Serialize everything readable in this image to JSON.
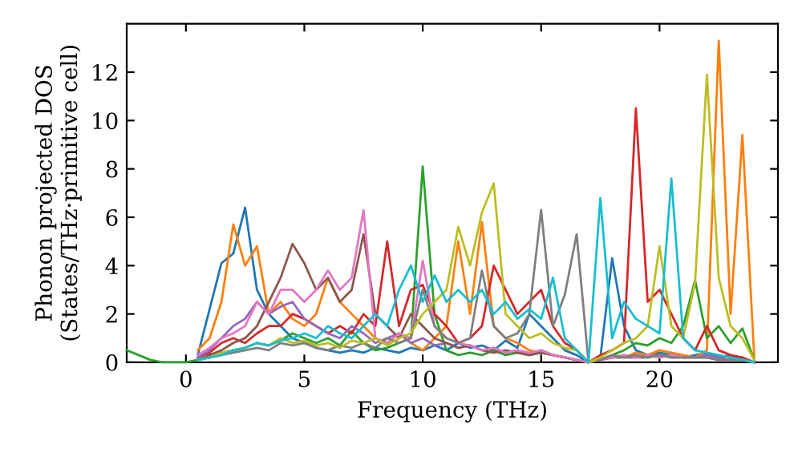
{
  "chart_data": {
    "type": "line",
    "xlabel": "Frequency (THz)",
    "ylabel": "Phonon projected DOS\n(States/THz·primitive cell)",
    "xlim": [
      -2.5,
      25
    ],
    "ylim": [
      0,
      14
    ],
    "xticks": [
      0,
      5,
      10,
      15,
      20
    ],
    "yticks": [
      0,
      2,
      4,
      6,
      8,
      10,
      12
    ],
    "grid": false,
    "marker": "none",
    "line_style": "solid",
    "x": [
      -2.5,
      -2,
      -1.5,
      -1,
      -0.5,
      0,
      0.5,
      1,
      1.5,
      2,
      2.5,
      3,
      3.5,
      4,
      4.5,
      5,
      5.5,
      6,
      6.5,
      7,
      7.5,
      8,
      8.5,
      9,
      9.5,
      10,
      10.5,
      11,
      11.5,
      12,
      12.5,
      13,
      13.5,
      14,
      14.5,
      15,
      15.5,
      16,
      16.5,
      17,
      17.5,
      18,
      18.5,
      19,
      19.5,
      20,
      20.5,
      21,
      21.5,
      22,
      22.5,
      23,
      23.5,
      24
    ],
    "series": [
      {
        "color": "#1f77b4",
        "values": [
          null,
          null,
          null,
          null,
          null,
          null,
          0.3,
          2.2,
          4.1,
          4.5,
          6.4,
          3,
          2,
          1.5,
          1,
          0.8,
          0.6,
          0.5,
          0.4,
          0.5,
          0.4,
          0.6,
          0.5,
          0.4,
          0.6,
          0.5,
          0.7,
          0.5,
          0.8,
          0.6,
          0.7,
          0.5,
          0.9,
          0.6,
          2,
          1.5,
          1,
          0.5,
          0.3,
          0,
          0.2,
          4.3,
          1.5,
          0.5,
          0.3,
          0.4,
          0.3,
          0.2,
          0.3,
          0.4,
          0.2,
          0.3,
          0.1,
          0
        ]
      },
      {
        "color": "#ff7f0e",
        "values": [
          null,
          null,
          null,
          null,
          null,
          null,
          0.5,
          1,
          2.5,
          5.7,
          4,
          4.8,
          2,
          2.5,
          1.8,
          1.5,
          2,
          3.5,
          2.5,
          2,
          1.5,
          1,
          0.8,
          1.2,
          0.8,
          0.5,
          1,
          1.5,
          5,
          2,
          5.8,
          1.5,
          1,
          0.8,
          0.5,
          0.4,
          0.3,
          0.2,
          0.1,
          0,
          0.1,
          0.3,
          0.2,
          0.4,
          0.3,
          0.5,
          0.4,
          0.3,
          0.2,
          0.5,
          13.3,
          2,
          9.4,
          0.2
        ]
      },
      {
        "color": "#2ca02c",
        "values": [
          0.5,
          0.3,
          0.1,
          0,
          0,
          0,
          0.1,
          0.2,
          0.4,
          0.5,
          0.6,
          0.8,
          0.7,
          0.9,
          1.2,
          1,
          0.8,
          1,
          0.7,
          1.3,
          0.8,
          0.5,
          0.6,
          0.8,
          1,
          8.1,
          2,
          0.5,
          0.3,
          0.4,
          0.3,
          0.5,
          0.3,
          0.4,
          0.3,
          0.5,
          0.3,
          0.2,
          0.1,
          0,
          0.1,
          0.3,
          0.5,
          0.8,
          0.7,
          1,
          0.8,
          1.5,
          3.4,
          1,
          1.5,
          0.8,
          1.4,
          0.1
        ]
      },
      {
        "color": "#d62728",
        "values": [
          null,
          null,
          null,
          null,
          null,
          null,
          0.2,
          0.4,
          0.8,
          1,
          0.8,
          1.2,
          1.5,
          1.5,
          2,
          1.8,
          1.5,
          1.2,
          1.5,
          1.2,
          2,
          1.5,
          5,
          1.5,
          3,
          3.2,
          2,
          1.5,
          0.8,
          1,
          1.5,
          4,
          3,
          2,
          2.5,
          3,
          1.5,
          0.8,
          0.5,
          0,
          0.3,
          0.5,
          0.8,
          10.5,
          2.5,
          3,
          2,
          1,
          0.5,
          1.5,
          0.5,
          0.3,
          0.2,
          0
        ]
      },
      {
        "color": "#9467bd",
        "values": [
          null,
          null,
          null,
          null,
          null,
          null,
          0.2,
          0.5,
          1,
          1.5,
          1.8,
          2.5,
          2,
          2.3,
          2.5,
          1.8,
          1.5,
          1.2,
          1,
          1.5,
          1.2,
          0.8,
          1,
          1.2,
          0.8,
          1,
          0.7,
          0.8,
          0.6,
          0.7,
          0.5,
          0.6,
          0.4,
          0.5,
          0.3,
          0.4,
          0.3,
          0.2,
          0.1,
          0,
          0.1,
          0.2,
          0.3,
          0.2,
          0.3,
          0.2,
          0.3,
          0.2,
          0.2,
          0.3,
          0.2,
          0.1,
          0.1,
          0
        ]
      },
      {
        "color": "#8c564b",
        "values": [
          null,
          null,
          null,
          null,
          null,
          null,
          0.1,
          0.3,
          0.5,
          0.8,
          1,
          1.5,
          2.5,
          3.5,
          4.9,
          4.1,
          3,
          3.5,
          2.5,
          3,
          5.3,
          2,
          1.5,
          1,
          2,
          1.5,
          1,
          0.8,
          0.6,
          0.7,
          0.5,
          0.4,
          0.5,
          0.4,
          0.3,
          0.4,
          0.3,
          0.2,
          0.1,
          0,
          0.1,
          0.2,
          0.2,
          0.2,
          0.2,
          0.3,
          0.2,
          0.2,
          0.2,
          0.2,
          0.1,
          0.1,
          0.1,
          0
        ]
      },
      {
        "color": "#e377c2",
        "values": [
          null,
          null,
          null,
          null,
          null,
          null,
          0.3,
          0.6,
          1,
          1.2,
          1.5,
          2.5,
          2,
          3,
          3,
          2.5,
          3,
          3.8,
          3,
          3.5,
          6.3,
          1,
          0.8,
          1.2,
          1,
          4.2,
          1.5,
          1,
          0.8,
          0.7,
          0.5,
          0.6,
          0.4,
          0.5,
          0.4,
          0.5,
          0.3,
          0.2,
          0.1,
          0,
          0.1,
          0.2,
          0.3,
          0.2,
          0.3,
          0.2,
          0.3,
          0.2,
          0.2,
          0.2,
          0.1,
          0.1,
          0.1,
          0
        ]
      },
      {
        "color": "#7f7f7f",
        "values": [
          null,
          null,
          null,
          null,
          null,
          null,
          0.1,
          0.2,
          0.3,
          0.4,
          0.5,
          0.6,
          0.5,
          0.8,
          0.7,
          0.8,
          0.6,
          0.5,
          0.7,
          0.6,
          0.8,
          0.6,
          1,
          0.8,
          1,
          3,
          1.5,
          1,
          0.8,
          1,
          3.8,
          1.5,
          1,
          1.2,
          2,
          6.3,
          1.5,
          2.8,
          5.3,
          0,
          0.1,
          0.3,
          0.2,
          0.3,
          0.2,
          0.3,
          0.2,
          0.2,
          0.2,
          0.2,
          0.1,
          0.1,
          0.1,
          0
        ]
      },
      {
        "color": "#bcbd22",
        "values": [
          null,
          null,
          null,
          null,
          null,
          null,
          0.1,
          0.2,
          0.4,
          0.5,
          0.6,
          0.8,
          0.7,
          1,
          0.8,
          0.9,
          0.7,
          0.8,
          0.6,
          0.9,
          0.8,
          1,
          0.7,
          1,
          1.2,
          2,
          2.5,
          3,
          5.6,
          4,
          6.2,
          7.4,
          2,
          1.5,
          1,
          1.2,
          0.8,
          0.6,
          0.5,
          0,
          0.2,
          0.5,
          0.8,
          1,
          1.5,
          4.8,
          1.5,
          1,
          3.3,
          11.9,
          3.5,
          1.5,
          1,
          0.1
        ]
      },
      {
        "color": "#17becf",
        "values": [
          null,
          null,
          null,
          null,
          null,
          null,
          0.1,
          0.2,
          0.3,
          0.5,
          0.6,
          0.8,
          0.7,
          0.9,
          1,
          1.2,
          1,
          1.5,
          1.2,
          1,
          1.5,
          2,
          1.5,
          3,
          4,
          2.5,
          3.6,
          2.5,
          3,
          2.5,
          3,
          2,
          2.5,
          1.8,
          2.2,
          1.8,
          3.5,
          1,
          0.5,
          0,
          6.8,
          1,
          2.5,
          1.8,
          1.5,
          1.2,
          7.6,
          1,
          0.5,
          0.4,
          0.3,
          0.2,
          0.1,
          0
        ]
      }
    ]
  }
}
